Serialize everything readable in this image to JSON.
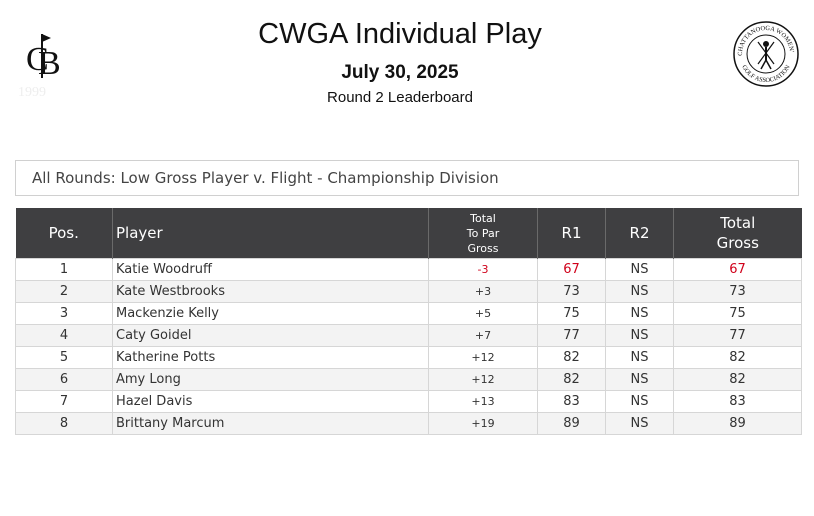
{
  "header": {
    "title": "CWGA Individual Play",
    "date": "July 30, 2025",
    "subtitle": "Round 2 Leaderboard"
  },
  "logos": {
    "left": "CB monogram logo",
    "right": "CHATTANOOGA WOMEN'S GOLF ASSOCIATION"
  },
  "division": "All Rounds: Low Gross Player v. Flight - Championship Division",
  "table": {
    "columns": {
      "pos": "Pos.",
      "player": "Player",
      "topar_1": "Total",
      "topar_2": "To Par",
      "topar_3": "Gross",
      "r1": "R1",
      "r2": "R2",
      "gross_1": "Total",
      "gross_2": "Gross"
    },
    "under_par_color": "#d0021b",
    "header_bg": "#3f3f41",
    "rows": [
      {
        "pos": "1",
        "player": "Katie Woodruff",
        "topar": "-3",
        "r1": "67",
        "r2": "NS",
        "total": "67"
      },
      {
        "pos": "2",
        "player": "Kate Westbrooks",
        "topar": "+3",
        "r1": "73",
        "r2": "NS",
        "total": "73"
      },
      {
        "pos": "3",
        "player": "Mackenzie Kelly",
        "topar": "+5",
        "r1": "75",
        "r2": "NS",
        "total": "75"
      },
      {
        "pos": "4",
        "player": "Caty Goidel",
        "topar": "+7",
        "r1": "77",
        "r2": "NS",
        "total": "77"
      },
      {
        "pos": "5",
        "player": "Katherine Potts",
        "topar": "+12",
        "r1": "82",
        "r2": "NS",
        "total": "82"
      },
      {
        "pos": "6",
        "player": "Amy Long",
        "topar": "+12",
        "r1": "82",
        "r2": "NS",
        "total": "82"
      },
      {
        "pos": "7",
        "player": "Hazel Davis",
        "topar": "+13",
        "r1": "83",
        "r2": "NS",
        "total": "83"
      },
      {
        "pos": "8",
        "player": "Brittany Marcum",
        "topar": "+19",
        "r1": "89",
        "r2": "NS",
        "total": "89"
      }
    ]
  }
}
